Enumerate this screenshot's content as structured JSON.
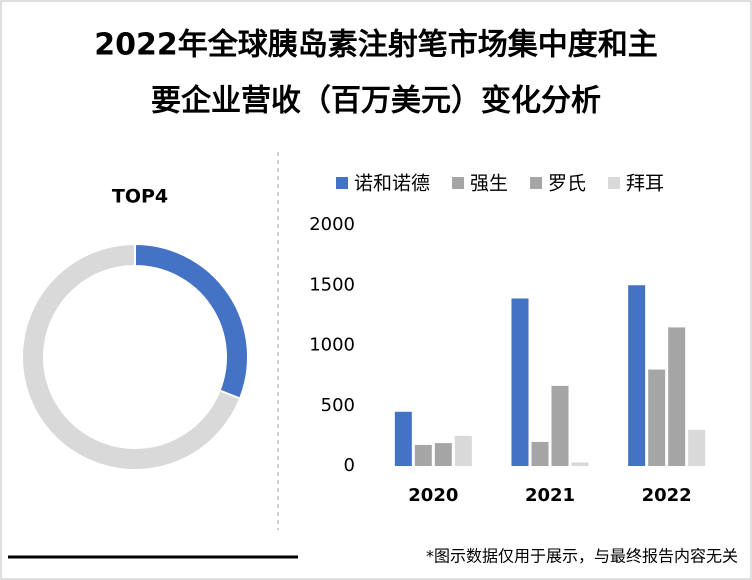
{
  "title_lines": [
    "2022年全球胰岛素注射笔市场集中度和主",
    "要企业营收（百万美元）变化分析"
  ],
  "note": "*图示数据仅用于展示，与最终报告内容无关",
  "chart_data": [
    {
      "type": "pie",
      "title": "TOP4",
      "categories": [
        null,
        null
      ],
      "values": [
        31,
        69
      ],
      "colors": [
        "#4472c4",
        "#d9d9d9"
      ],
      "donut": true
    },
    {
      "type": "bar",
      "categories": [
        "2020",
        "2021",
        "2022"
      ],
      "series": [
        {
          "name": "诺和诺德",
          "color": "#4472c4",
          "values": [
            450,
            1390,
            1500
          ]
        },
        {
          "name": "强生",
          "color": "#a5a5a5",
          "values": [
            175,
            200,
            800
          ]
        },
        {
          "name": "罗氏",
          "color": "#a5a5a5",
          "values": [
            190,
            665,
            1150
          ]
        },
        {
          "name": "拜耳",
          "color": "#d9d9d9",
          "values": [
            250,
            30,
            300
          ]
        }
      ],
      "ylim": [
        0,
        2000
      ],
      "yticks": [
        0,
        500,
        1000,
        1500,
        2000
      ],
      "legend": "top"
    }
  ]
}
